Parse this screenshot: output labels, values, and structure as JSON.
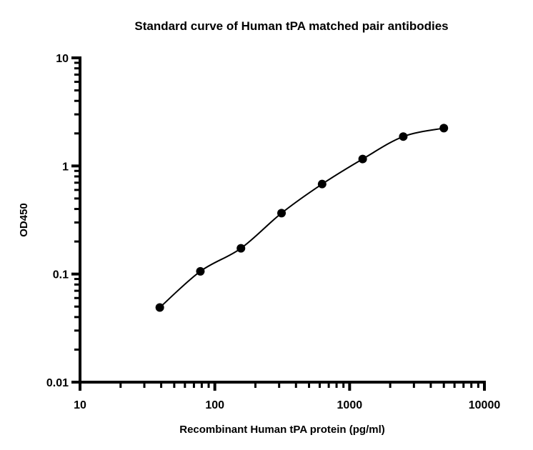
{
  "chart_data": {
    "type": "scatter",
    "title": "Standard curve of Human tPA matched pair antibodies",
    "xlabel": "Recombinant Human tPA protein (pg/ml)",
    "ylabel": "OD450",
    "x_scale": "log",
    "y_scale": "log",
    "xlim": [
      10,
      10000
    ],
    "ylim": [
      0.01,
      10
    ],
    "x_ticks": [
      "10",
      "100",
      "1000",
      "10000"
    ],
    "y_ticks": [
      "0.01",
      "0.1",
      "1",
      "10"
    ],
    "grid": false,
    "fit_curve": true,
    "colors": {
      "points": "#000000",
      "curve": "#000000"
    },
    "points": [
      {
        "x": 39.06,
        "y": 0.049
      },
      {
        "x": 78.13,
        "y": 0.106
      },
      {
        "x": 156.25,
        "y": 0.173
      },
      {
        "x": 312.5,
        "y": 0.366
      },
      {
        "x": 625,
        "y": 0.68
      },
      {
        "x": 1250,
        "y": 1.16
      },
      {
        "x": 2500,
        "y": 1.87
      },
      {
        "x": 5000,
        "y": 2.24
      }
    ]
  }
}
